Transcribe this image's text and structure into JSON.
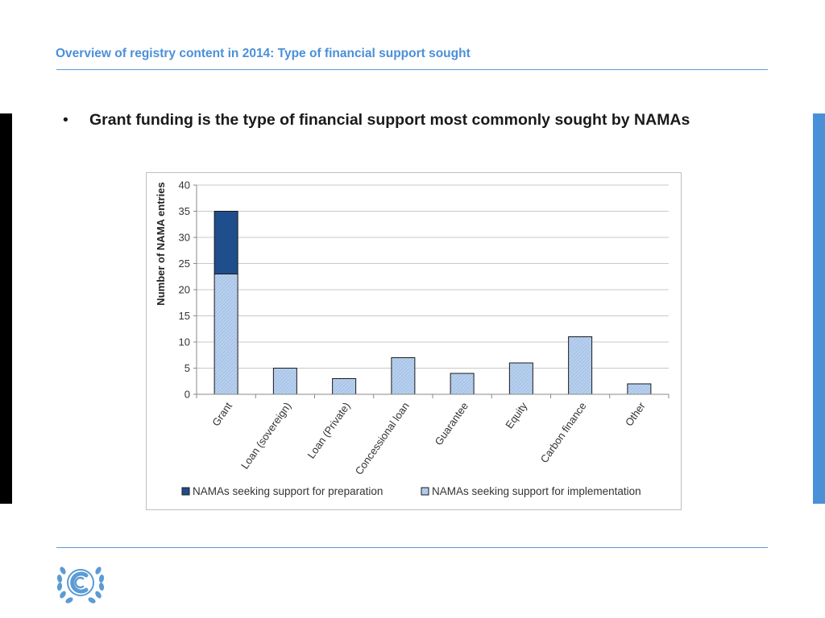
{
  "slide": {
    "title": "Overview of registry content in 2014: Type of financial support sought",
    "bullet": "Grant funding is the type of financial support most commonly sought by NAMAs",
    "bullet_symbol": "•",
    "colors": {
      "title": "#4a90d9",
      "rule": "#5b9bd5",
      "left_bar": "#000000",
      "right_bar": "#4a90d9"
    }
  },
  "logo": {
    "icon": "unfccc-logo-icon",
    "color": "#5b9bd5"
  },
  "chart_data": {
    "type": "bar",
    "stacked": true,
    "categories": [
      "Grant",
      "Loan (sovereign)",
      "Loan (Private)",
      "Concessional loan",
      "Guarantee",
      "Equity",
      "Carbon finance",
      "Other"
    ],
    "series": [
      {
        "name": "NAMAs seeking support for implementation",
        "values": [
          23,
          5,
          3,
          7,
          4,
          6,
          11,
          2
        ],
        "color": "#a9c4e8",
        "pattern": "hatched"
      },
      {
        "name": "NAMAs seeking support for preparation",
        "values": [
          12,
          0,
          0,
          0,
          0,
          0,
          0,
          0
        ],
        "color": "#1f4e8c",
        "pattern": "solid"
      }
    ],
    "title": "",
    "xlabel": "",
    "ylabel": "Number of NAMA entries",
    "ylim": [
      0,
      40
    ],
    "yticks": [
      0,
      5,
      10,
      15,
      20,
      25,
      30,
      35,
      40
    ],
    "grid": true,
    "legend_position": "bottom",
    "legend_order": [
      "NAMAs seeking support for preparation",
      "NAMAs seeking support for implementation"
    ]
  }
}
